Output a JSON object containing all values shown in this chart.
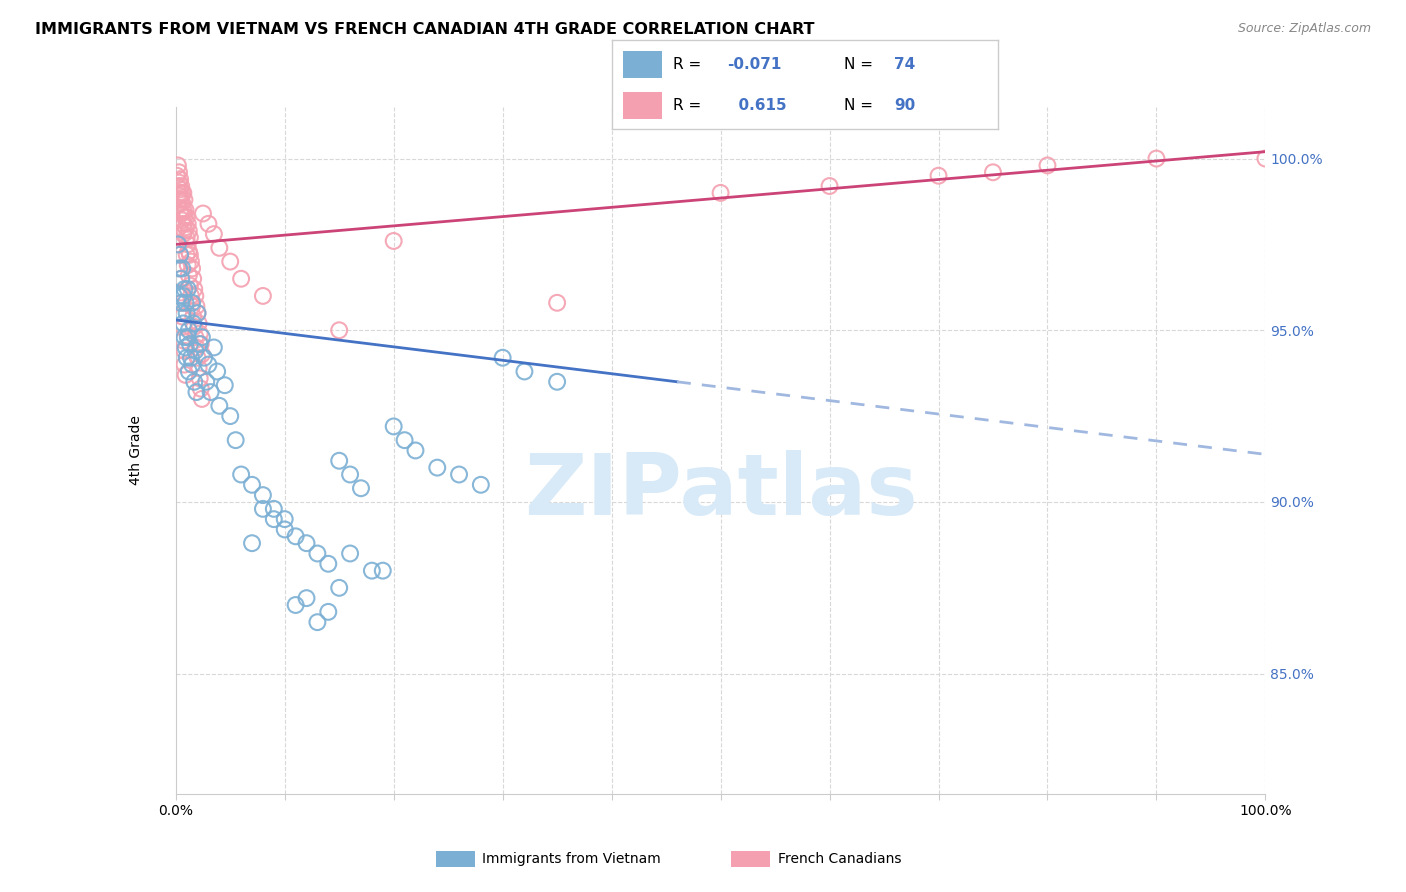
{
  "title": "IMMIGRANTS FROM VIETNAM VS FRENCH CANADIAN 4TH GRADE CORRELATION CHART",
  "source": "Source: ZipAtlas.com",
  "ylabel": "4th Grade",
  "xlim": [
    0.0,
    1.0
  ],
  "ylim": [
    81.5,
    101.5
  ],
  "legend_R_blue": "-0.071",
  "legend_N_blue": "74",
  "legend_R_pink": "0.615",
  "legend_N_pink": "90",
  "blue_color": "#7bafd4",
  "pink_color": "#f4a0b0",
  "trendline_blue_solid": "#4472c4",
  "trendline_blue_dash": "#a0b8e0",
  "trendline_pink": "#cc4477",
  "watermark_color": "#d8eaf8",
  "grid_color": "#d8d8d8",
  "blue_scatter_x": [
    0.002,
    0.003,
    0.003,
    0.004,
    0.005,
    0.005,
    0.006,
    0.006,
    0.007,
    0.007,
    0.008,
    0.008,
    0.009,
    0.009,
    0.01,
    0.01,
    0.011,
    0.011,
    0.012,
    0.012,
    0.013,
    0.014,
    0.015,
    0.015,
    0.016,
    0.017,
    0.018,
    0.019,
    0.02,
    0.022,
    0.024,
    0.026,
    0.028,
    0.03,
    0.032,
    0.035,
    0.038,
    0.04,
    0.045,
    0.05,
    0.055,
    0.06,
    0.07,
    0.08,
    0.09,
    0.1,
    0.11,
    0.12,
    0.13,
    0.14,
    0.15,
    0.16,
    0.17,
    0.19,
    0.2,
    0.21,
    0.22,
    0.24,
    0.26,
    0.28,
    0.3,
    0.32,
    0.35,
    0.11,
    0.13,
    0.15,
    0.12,
    0.14,
    0.16,
    0.18,
    0.1,
    0.09,
    0.08,
    0.07
  ],
  "blue_scatter_y": [
    97.5,
    96.8,
    96.0,
    97.2,
    96.5,
    95.8,
    96.8,
    95.5,
    96.0,
    95.2,
    96.2,
    94.8,
    95.8,
    94.5,
    95.5,
    94.2,
    96.2,
    94.8,
    95.0,
    93.8,
    94.6,
    94.2,
    95.8,
    94.0,
    95.2,
    93.5,
    94.4,
    93.2,
    95.5,
    94.6,
    94.8,
    94.2,
    93.5,
    94.0,
    93.2,
    94.5,
    93.8,
    92.8,
    93.4,
    92.5,
    91.8,
    90.8,
    90.5,
    90.2,
    89.8,
    89.5,
    89.0,
    88.8,
    88.5,
    88.2,
    91.2,
    90.8,
    90.4,
    88.0,
    92.2,
    91.8,
    91.5,
    91.0,
    90.8,
    90.5,
    94.2,
    93.8,
    93.5,
    87.0,
    86.5,
    87.5,
    87.2,
    86.8,
    88.5,
    88.0,
    89.2,
    89.5,
    89.8,
    88.8
  ],
  "pink_scatter_x": [
    0.001,
    0.002,
    0.002,
    0.003,
    0.003,
    0.003,
    0.003,
    0.004,
    0.004,
    0.004,
    0.004,
    0.005,
    0.005,
    0.005,
    0.006,
    0.006,
    0.006,
    0.007,
    0.007,
    0.007,
    0.007,
    0.008,
    0.008,
    0.008,
    0.009,
    0.009,
    0.01,
    0.01,
    0.011,
    0.011,
    0.012,
    0.012,
    0.013,
    0.013,
    0.014,
    0.015,
    0.016,
    0.017,
    0.018,
    0.019,
    0.02,
    0.021,
    0.022,
    0.023,
    0.024,
    0.025,
    0.03,
    0.035,
    0.04,
    0.05,
    0.06,
    0.08,
    0.15,
    0.2,
    0.35,
    0.5,
    0.6,
    0.7,
    0.75,
    0.8,
    0.9,
    1.0,
    0.003,
    0.003,
    0.004,
    0.004,
    0.005,
    0.005,
    0.006,
    0.006,
    0.007,
    0.007,
    0.008,
    0.008,
    0.009,
    0.01,
    0.011,
    0.012,
    0.013,
    0.014,
    0.015,
    0.016,
    0.017,
    0.018,
    0.019,
    0.02,
    0.021,
    0.022,
    0.023,
    0.024
  ],
  "pink_scatter_y": [
    99.5,
    99.8,
    99.2,
    99.6,
    99.3,
    99.0,
    98.8,
    99.4,
    99.1,
    98.9,
    98.5,
    99.2,
    98.8,
    98.4,
    99.0,
    98.7,
    98.2,
    99.0,
    98.5,
    98.1,
    97.8,
    98.8,
    98.3,
    97.9,
    98.5,
    98.0,
    98.3,
    97.7,
    98.1,
    97.5,
    97.9,
    97.3,
    97.7,
    97.2,
    97.0,
    96.8,
    96.5,
    96.2,
    96.0,
    95.7,
    95.5,
    95.2,
    94.9,
    94.6,
    94.3,
    98.4,
    98.1,
    97.8,
    97.4,
    97.0,
    96.5,
    96.0,
    95.0,
    97.6,
    95.8,
    99.0,
    99.2,
    99.5,
    99.6,
    99.8,
    100.0,
    100.0,
    98.0,
    97.5,
    97.2,
    96.8,
    96.5,
    96.1,
    95.8,
    95.4,
    95.1,
    94.7,
    94.4,
    94.0,
    93.7,
    97.2,
    96.9,
    96.6,
    96.3,
    96.0,
    95.7,
    95.4,
    95.1,
    94.8,
    94.5,
    94.2,
    93.9,
    93.6,
    93.3,
    93.0
  ]
}
